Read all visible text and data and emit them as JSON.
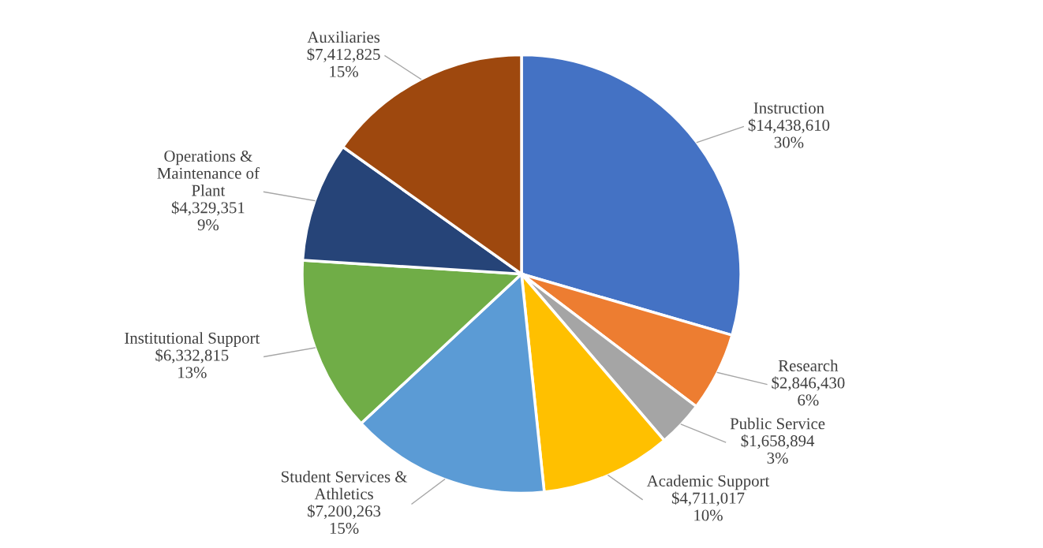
{
  "chart_data": {
    "type": "pie",
    "categories": [
      "Instruction",
      "Research",
      "Public Service",
      "Academic Support",
      "Student Services &\nAthletics",
      "Institutional Support",
      "Operations &\nMaintenance of\nPlant",
      "Auxiliaries"
    ],
    "values": [
      14438610,
      2846430,
      1658894,
      4711017,
      7200263,
      6332815,
      4329351,
      7412825
    ],
    "colors": [
      "#4472c4",
      "#ed7d31",
      "#a5a5a5",
      "#ffc000",
      "#5b9bd5",
      "#70ad47",
      "#264478",
      "#9e480e"
    ],
    "value_labels": [
      "$14,438,610\n30%",
      "$2,846,430\n6%",
      "$1,658,894\n3%",
      "$4,711,017\n10%",
      "$7,200,263\n15%",
      "$6,332,815\n13%",
      "$4,329,351\n9%",
      "$7,412,825\n15%"
    ],
    "legend": false
  }
}
